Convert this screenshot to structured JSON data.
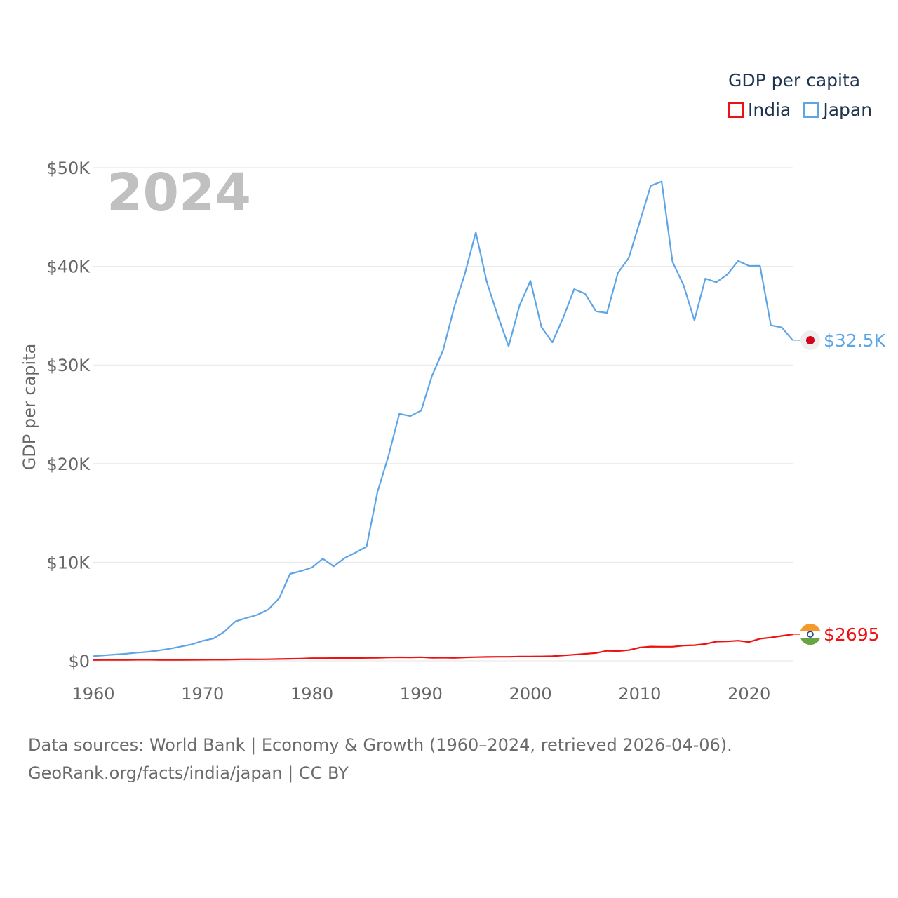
{
  "chart_data": {
    "type": "line",
    "title": "GDP per capita",
    "ylabel": "GDP per capita",
    "xlabel": "",
    "year_label": "2024",
    "xlim": [
      1960,
      2024
    ],
    "ylim": [
      0,
      50000
    ],
    "x_ticks": [
      1960,
      1970,
      1980,
      1990,
      2000,
      2010,
      2020
    ],
    "x_tick_labels": [
      "1960",
      "1970",
      "1980",
      "1990",
      "2000",
      "2010",
      "2020"
    ],
    "y_ticks": [
      0,
      10000,
      20000,
      30000,
      40000,
      50000
    ],
    "y_tick_labels": [
      "$0",
      "$10K",
      "$20K",
      "$30K",
      "$40K",
      "$50K"
    ],
    "legend_title": "GDP per capita",
    "x": [
      1960,
      1961,
      1962,
      1963,
      1964,
      1965,
      1966,
      1967,
      1968,
      1969,
      1970,
      1971,
      1972,
      1973,
      1974,
      1975,
      1976,
      1977,
      1978,
      1979,
      1980,
      1981,
      1982,
      1983,
      1984,
      1985,
      1986,
      1987,
      1988,
      1989,
      1990,
      1991,
      1992,
      1993,
      1994,
      1995,
      1996,
      1997,
      1998,
      1999,
      2000,
      2001,
      2002,
      2003,
      2004,
      2005,
      2006,
      2007,
      2008,
      2009,
      2010,
      2011,
      2012,
      2013,
      2014,
      2015,
      2016,
      2017,
      2018,
      2019,
      2020,
      2021,
      2022,
      2023,
      2024
    ],
    "series": [
      {
        "name": "India",
        "color": "#ee1111",
        "end_label": "$2695",
        "values": [
          83,
          89,
          92,
          101,
          115,
          119,
          90,
          97,
          99,
          107,
          112,
          118,
          123,
          143,
          163,
          157,
          161,
          186,
          205,
          225,
          267,
          271,
          275,
          292,
          276,
          296,
          311,
          341,
          354,
          346,
          368,
          303,
          317,
          301,
          346,
          374,
          400,
          415,
          413,
          440,
          443,
          451,
          470,
          546,
          624,
          710,
          800,
          1022,
          993,
          1090,
          1350,
          1450,
          1434,
          1438,
          1560,
          1590,
          1714,
          1957,
          1974,
          2050,
          1913,
          2250,
          2366,
          2530,
          2695
        ]
      },
      {
        "name": "Japan",
        "color": "#5ea5e8",
        "end_label": "$32.5K",
        "values": [
          479,
          564,
          639,
          720,
          835,
          919,
          1059,
          1229,
          1450,
          1669,
          2037,
          2272,
          2967,
          3997,
          4354,
          4659,
          5198,
          6335,
          8821,
          9105,
          9463,
          10361,
          9578,
          10425,
          10985,
          11584,
          17112,
          20745,
          25051,
          24813,
          25371,
          28925,
          31464,
          35766,
          39269,
          43440,
          38437,
          35022,
          31902,
          36027,
          38532,
          33846,
          32289,
          34809,
          37689,
          37218,
          35434,
          35275,
          39339,
          40855,
          44508,
          48168,
          48603,
          40454,
          38109,
          34524,
          38761,
          38387,
          39159,
          40548,
          40040,
          40059,
          34017,
          33805,
          32500
        ]
      }
    ],
    "footer_line1": "Data sources: World Bank | Economy & Growth (1960–2024, retrieved 2026-04-06).",
    "footer_line2": "GeoRank.org/facts/india/japan | CC BY",
    "colors": {
      "grid": "#e6e6e6",
      "axis_text": "#666666",
      "year_label": "#c0c0c0"
    },
    "flag_icons": {
      "India": "india-flag-icon",
      "Japan": "japan-flag-icon"
    }
  }
}
